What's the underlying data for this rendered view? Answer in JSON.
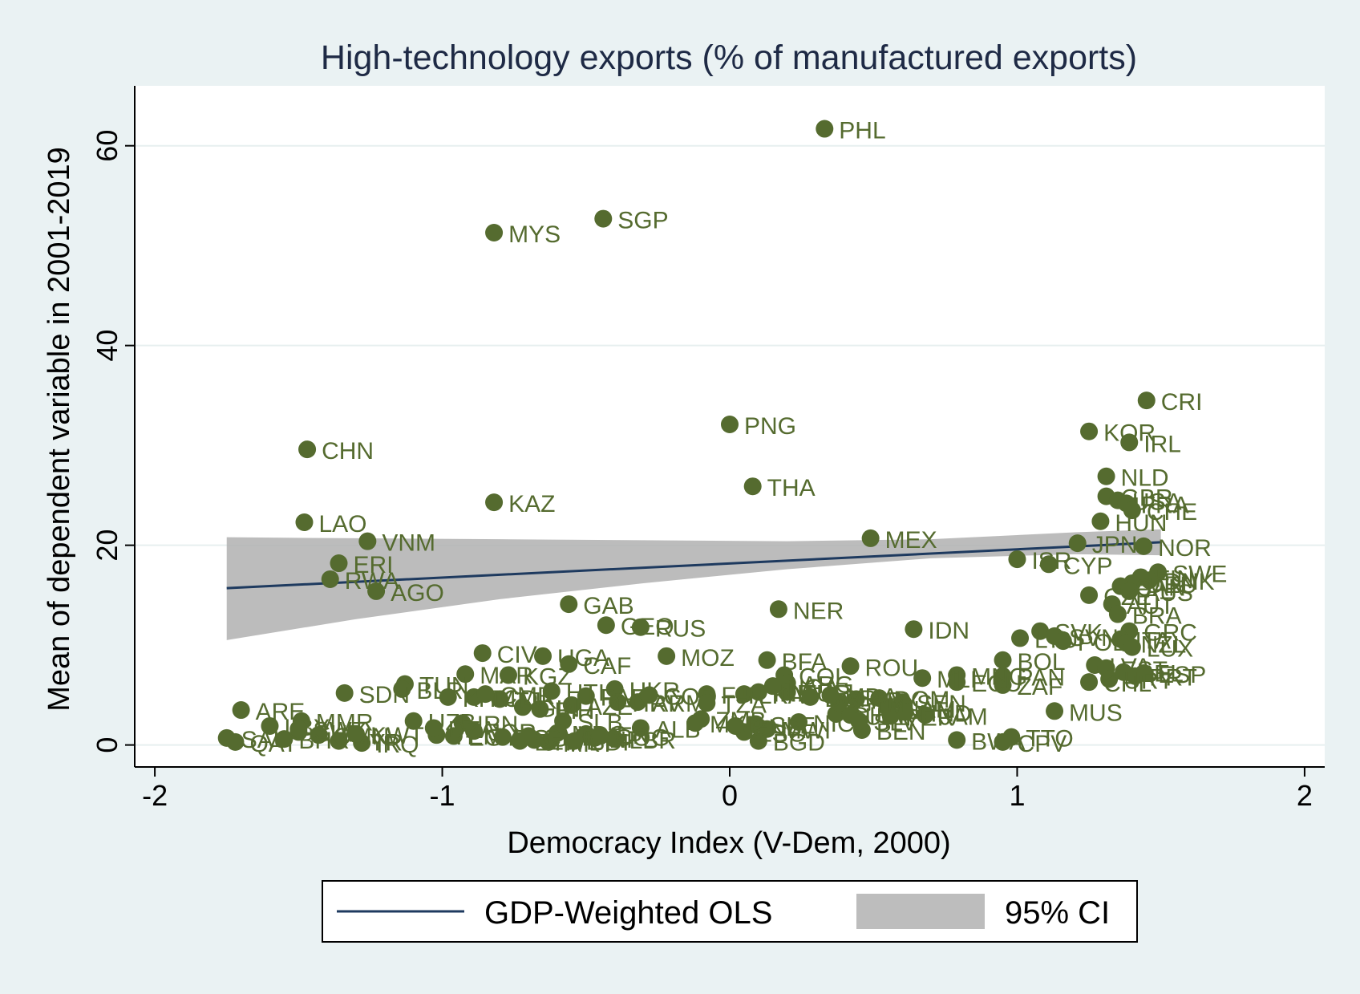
{
  "chart_data": {
    "type": "scatter",
    "title": "High-technology exports (% of manufactured exports)",
    "xlabel": "Democracy Index (V-Dem, 2000)",
    "ylabel": "Mean of dependent variable in 2001-2019",
    "xlim": [
      -2.07,
      2.07
    ],
    "ylim": [
      -2.2,
      66
    ],
    "x_ticks": [
      -2,
      -1,
      0,
      1,
      2
    ],
    "x_tick_labels": [
      "-2",
      "-1",
      "0",
      "1",
      "2"
    ],
    "y_ticks": [
      0,
      20,
      40,
      60
    ],
    "y_tick_labels": [
      "0",
      "20",
      "40",
      "60"
    ],
    "grid": "horizontal",
    "colors": {
      "background": "#eaf2f3",
      "plot_area": "#ffffff",
      "marker": "#556b2f",
      "label": "#556b2f",
      "fit_line": "#1e3a5f",
      "ci_band": "#b0b0b0",
      "title": "#1e2a45",
      "grid": "#e7efef"
    },
    "legend": {
      "placement": "bottom",
      "items": [
        {
          "label": "GDP-Weighted OLS",
          "kind": "line",
          "color": "#1e3a5f"
        },
        {
          "label": "95% CI",
          "kind": "area",
          "color": "#bdbdbd"
        }
      ]
    },
    "fit": {
      "x": [
        -1.75,
        1.5
      ],
      "y": [
        15.7,
        20.3
      ]
    },
    "ci": {
      "x": [
        -1.75,
        -1.3,
        -0.8,
        -0.3,
        0.2,
        0.7,
        1.2,
        1.5
      ],
      "upper": [
        20.8,
        20.7,
        20.6,
        20.5,
        20.4,
        20.6,
        21.3,
        21.6
      ],
      "lower": [
        10.5,
        12.6,
        14.6,
        16.2,
        17.6,
        18.7,
        19.1,
        19.0
      ]
    },
    "points": [
      {
        "label": "PHL",
        "x": 0.33,
        "y": 61.7
      },
      {
        "label": "SGP",
        "x": -0.44,
        "y": 52.7
      },
      {
        "label": "MYS",
        "x": -0.82,
        "y": 51.3
      },
      {
        "label": "CRI",
        "x": 1.45,
        "y": 34.5
      },
      {
        "label": "PNG",
        "x": 0.0,
        "y": 32.1
      },
      {
        "label": "KOR",
        "x": 1.25,
        "y": 31.4
      },
      {
        "label": "IRL",
        "x": 1.39,
        "y": 30.3
      },
      {
        "label": "CHN",
        "x": -1.47,
        "y": 29.6
      },
      {
        "label": "NLD",
        "x": 1.31,
        "y": 26.9
      },
      {
        "label": "THA",
        "x": 0.08,
        "y": 25.9
      },
      {
        "label": "GBR",
        "x": 1.31,
        "y": 24.9
      },
      {
        "label": "USA",
        "x": 1.35,
        "y": 24.5
      },
      {
        "label": "FRA",
        "x": 1.38,
        "y": 24.2
      },
      {
        "label": "CHE",
        "x": 1.4,
        "y": 23.5
      },
      {
        "label": "KAZ",
        "x": -0.82,
        "y": 24.3
      },
      {
        "label": "HUN",
        "x": 1.29,
        "y": 22.4
      },
      {
        "label": "LAO",
        "x": -1.48,
        "y": 22.3
      },
      {
        "label": "MEX",
        "x": 0.49,
        "y": 20.7
      },
      {
        "label": "VNM",
        "x": -1.26,
        "y": 20.4
      },
      {
        "label": "JPN",
        "x": 1.21,
        "y": 20.2
      },
      {
        "label": "NOR",
        "x": 1.44,
        "y": 19.9
      },
      {
        "label": "ISR",
        "x": 1.0,
        "y": 18.6
      },
      {
        "label": "CYP",
        "x": 1.11,
        "y": 18.1
      },
      {
        "label": "ERI",
        "x": -1.36,
        "y": 18.2
      },
      {
        "label": "RWA",
        "x": -1.39,
        "y": 16.6
      },
      {
        "label": "AGO",
        "x": -1.23,
        "y": 15.4
      },
      {
        "label": "SWE",
        "x": 1.49,
        "y": 17.3
      },
      {
        "label": "FIN",
        "x": 1.43,
        "y": 16.8
      },
      {
        "label": "DNK",
        "x": 1.46,
        "y": 16.5
      },
      {
        "label": "DEU",
        "x": 1.4,
        "y": 16.2
      },
      {
        "label": "CAN",
        "x": 1.36,
        "y": 15.9
      },
      {
        "label": "AUS",
        "x": 1.39,
        "y": 15.4
      },
      {
        "label": "CZE",
        "x": 1.25,
        "y": 15.0
      },
      {
        "label": "AUT",
        "x": 1.33,
        "y": 14.1
      },
      {
        "label": "BRA",
        "x": 1.35,
        "y": 13.1
      },
      {
        "label": "NER",
        "x": 0.17,
        "y": 13.6
      },
      {
        "label": "GAB",
        "x": -0.56,
        "y": 14.1
      },
      {
        "label": "GEO",
        "x": -0.43,
        "y": 12.0
      },
      {
        "label": "RUS",
        "x": -0.31,
        "y": 11.8
      },
      {
        "label": "IDN",
        "x": 0.64,
        "y": 11.6
      },
      {
        "label": "SVK",
        "x": 1.08,
        "y": 11.4
      },
      {
        "label": "LTU",
        "x": 1.01,
        "y": 10.7
      },
      {
        "label": "SVN",
        "x": 1.13,
        "y": 10.9
      },
      {
        "label": "POL",
        "x": 1.16,
        "y": 10.4
      },
      {
        "label": "GRC",
        "x": 1.39,
        "y": 11.4
      },
      {
        "label": "ITA",
        "x": 1.36,
        "y": 10.6
      },
      {
        "label": "NZL",
        "x": 1.38,
        "y": 10.2
      },
      {
        "label": "LUX",
        "x": 1.4,
        "y": 9.8
      },
      {
        "label": "CIV",
        "x": -0.86,
        "y": 9.2
      },
      {
        "label": "UGA",
        "x": -0.65,
        "y": 8.9
      },
      {
        "label": "CAF",
        "x": -0.56,
        "y": 8.1
      },
      {
        "label": "MOZ",
        "x": -0.22,
        "y": 8.9
      },
      {
        "label": "BFA",
        "x": 0.13,
        "y": 8.5
      },
      {
        "label": "BOL",
        "x": 0.95,
        "y": 8.5
      },
      {
        "label": "ROU",
        "x": 0.42,
        "y": 7.9
      },
      {
        "label": "LVA",
        "x": 1.27,
        "y": 8.0
      },
      {
        "label": "EST",
        "x": 1.31,
        "y": 7.7
      },
      {
        "label": "BEL",
        "x": 1.37,
        "y": 7.3
      },
      {
        "label": "ESP",
        "x": 1.44,
        "y": 7.2
      },
      {
        "label": "PRT",
        "x": 1.41,
        "y": 6.9
      },
      {
        "label": "URY",
        "x": 1.32,
        "y": 6.6
      },
      {
        "label": "CHL",
        "x": 1.25,
        "y": 6.3
      },
      {
        "label": "MAR",
        "x": -0.92,
        "y": 7.1
      },
      {
        "label": "KGZ",
        "x": -0.77,
        "y": 7.0
      },
      {
        "label": "PAN",
        "x": 0.95,
        "y": 6.9
      },
      {
        "label": "ZAF",
        "x": 0.95,
        "y": 6.0
      },
      {
        "label": "MNG",
        "x": 0.79,
        "y": 7.0
      },
      {
        "label": "ECU",
        "x": 0.79,
        "y": 6.3
      },
      {
        "label": "MLI",
        "x": 0.67,
        "y": 6.7
      },
      {
        "label": "DOM",
        "x": 0.52,
        "y": 4.7
      },
      {
        "label": "SEN",
        "x": 0.6,
        "y": 4.3
      },
      {
        "label": "COL",
        "x": 0.19,
        "y": 7.0
      },
      {
        "label": "ARG",
        "x": 0.2,
        "y": 6.2
      },
      {
        "label": "HKR",
        "x": -0.4,
        "y": 5.6
      },
      {
        "label": "TUN",
        "x": -1.13,
        "y": 6.1
      },
      {
        "label": "BLR",
        "x": -1.14,
        "y": 5.6
      },
      {
        "label": "SDN",
        "x": -1.34,
        "y": 5.2
      },
      {
        "label": "ARE",
        "x": -1.7,
        "y": 3.5
      },
      {
        "label": "MUS",
        "x": 1.13,
        "y": 3.4
      },
      {
        "label": "JAM",
        "x": 0.68,
        "y": 3.0
      },
      {
        "label": "BEN",
        "x": 0.46,
        "y": 1.5
      },
      {
        "label": "BWA",
        "x": 0.79,
        "y": 0.5
      },
      {
        "label": "TTO",
        "x": 0.98,
        "y": 0.8
      },
      {
        "label": "CPV",
        "x": 0.95,
        "y": 0.3
      },
      {
        "label": "ALB",
        "x": -0.31,
        "y": 1.7
      },
      {
        "label": "NPL",
        "x": -0.47,
        "y": 0.7
      },
      {
        "label": "MRT",
        "x": -0.63,
        "y": 0.3
      },
      {
        "label": "BGD",
        "x": 0.1,
        "y": 0.4
      },
      {
        "label": "MMR",
        "x": -1.49,
        "y": 2.4
      },
      {
        "label": "IRN",
        "x": -0.93,
        "y": 2.2
      },
      {
        "label": "IRQ",
        "x": -1.28,
        "y": 0.2
      },
      {
        "label": "SAU",
        "x": -1.75,
        "y": 0.7
      },
      {
        "label": "QAT",
        "x": -1.72,
        "y": 0.3
      },
      {
        "label": "BHR",
        "x": -1.55,
        "y": 0.6
      },
      {
        "label": "SYR",
        "x": -1.36,
        "y": 0.4
      },
      {
        "label": "LBY",
        "x": -1.6,
        "y": 1.9
      },
      {
        "label": "CUB",
        "x": -1.5,
        "y": 1.3
      },
      {
        "label": "OMN",
        "x": -1.43,
        "y": 1.0
      },
      {
        "label": "YEM",
        "x": -1.02,
        "y": 1.0
      },
      {
        "label": "UZB",
        "x": -1.1,
        "y": 2.4
      },
      {
        "label": "EGY",
        "x": -0.96,
        "y": 0.9
      },
      {
        "label": "JOR",
        "x": -0.89,
        "y": 1.4
      },
      {
        "label": "DZA",
        "x": -1.03,
        "y": 1.7
      },
      {
        "label": "TGO",
        "x": -0.79,
        "y": 0.8
      },
      {
        "label": "ETH",
        "x": -0.73,
        "y": 0.4
      },
      {
        "label": "SLB",
        "x": -0.58,
        "y": 2.4
      },
      {
        "label": "KEN",
        "x": -0.5,
        "y": 1.1
      },
      {
        "label": "ZWE",
        "x": -0.68,
        "y": 0.5
      },
      {
        "label": "MDG",
        "x": -0.6,
        "y": 1.2
      },
      {
        "label": "LSO",
        "x": 0.05,
        "y": 1.3
      },
      {
        "label": "SLE",
        "x": 0.09,
        "y": 2.1
      },
      {
        "label": "MWI",
        "x": 0.13,
        "y": 1.6
      },
      {
        "label": "NIC",
        "x": 0.24,
        "y": 2.3
      },
      {
        "label": "ZMB",
        "x": -0.1,
        "y": 2.6
      },
      {
        "label": "MKD",
        "x": -0.12,
        "y": 2.2
      },
      {
        "label": "GHA",
        "x": 0.37,
        "y": 3.1
      },
      {
        "label": "UKR",
        "x": 0.42,
        "y": 3.0
      },
      {
        "label": "SLV",
        "x": 0.45,
        "y": 2.4
      },
      {
        "label": "NAM",
        "x": 0.55,
        "y": 3.7
      },
      {
        "label": "PER",
        "x": 0.56,
        "y": 2.9
      },
      {
        "label": "HND",
        "x": 0.61,
        "y": 3.3
      },
      {
        "label": "GTM",
        "x": 0.38,
        "y": 4.2
      },
      {
        "label": "PRY",
        "x": 0.44,
        "y": 4.6
      },
      {
        "label": "TUR",
        "x": 0.2,
        "y": 5.3
      },
      {
        "label": "IND",
        "x": 0.1,
        "y": 5.3
      },
      {
        "label": "LKA",
        "x": 0.05,
        "y": 5.1
      },
      {
        "label": "FJI",
        "x": -0.08,
        "y": 5.1
      },
      {
        "label": "HRV",
        "x": -0.39,
        "y": 4.3
      },
      {
        "label": "ARM",
        "x": -0.32,
        "y": 4.3
      },
      {
        "label": "PAK",
        "x": -0.5,
        "y": 4.9
      },
      {
        "label": "AZE",
        "x": -0.55,
        "y": 4.0
      },
      {
        "label": "BIH",
        "x": -0.66,
        "y": 3.6
      },
      {
        "label": "GIN",
        "x": -0.72,
        "y": 3.8
      },
      {
        "label": "TJK",
        "x": -0.8,
        "y": 4.6
      },
      {
        "label": "TCD",
        "x": -0.89,
        "y": 4.8
      },
      {
        "label": "KHM",
        "x": -0.98,
        "y": 4.8
      },
      {
        "label": "CMR",
        "x": -0.85,
        "y": 5.1
      },
      {
        "label": "HTI",
        "x": -0.62,
        "y": 5.4
      },
      {
        "label": "SWZ",
        "x": -1.5,
        "y": 1.6
      },
      {
        "label": "NGA",
        "x": 0.15,
        "y": 5.9
      },
      {
        "label": "COD",
        "x": -0.28,
        "y": 5.0
      },
      {
        "label": "TZA",
        "x": -0.08,
        "y": 4.2
      },
      {
        "label": "BGR",
        "x": 0.28,
        "y": 4.8
      },
      {
        "label": "MDA",
        "x": 0.35,
        "y": 5.0
      },
      {
        "label": "GMB",
        "x": -0.7,
        "y": 0.9
      },
      {
        "label": "LBR",
        "x": -0.4,
        "y": 0.6
      },
      {
        "label": "BDI",
        "x": -0.54,
        "y": 0.4
      },
      {
        "label": "COG",
        "x": -0.45,
        "y": 0.9
      },
      {
        "label": "GNB",
        "x": 0.02,
        "y": 1.9
      },
      {
        "label": "KWT",
        "x": -1.3,
        "y": 1.1
      }
    ]
  }
}
